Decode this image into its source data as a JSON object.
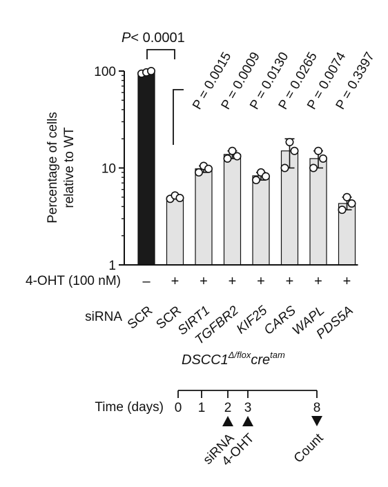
{
  "chart_data": {
    "type": "bar",
    "yscale": "log",
    "ylim": [
      1,
      100
    ],
    "ylabel_line1": "Percentage of cells",
    "ylabel_line2": "relative to WT",
    "yticks": [
      "1",
      "10",
      "100"
    ],
    "yticks_values": [
      1,
      10,
      100
    ],
    "categories": [
      "SCR",
      "SCR",
      "SIRT1",
      "TGFBR2",
      "KIF25",
      "CARS",
      "WAPL",
      "PDS5A"
    ],
    "values": [
      97,
      5.0,
      9.8,
      13.8,
      8.3,
      15.0,
      12.5,
      4.3
    ],
    "error_high": [
      100,
      5.2,
      10.5,
      15.0,
      9.0,
      20.0,
      15.0,
      5.0
    ],
    "error_low": [
      94,
      4.8,
      9.0,
      12.5,
      7.5,
      10.0,
      10.0,
      3.7
    ],
    "points": [
      [
        94,
        97,
        100
      ],
      [
        4.8,
        5.2,
        4.9
      ],
      [
        9.0,
        10.5,
        9.8
      ],
      [
        12.5,
        15.0,
        13.2
      ],
      [
        7.5,
        9.0,
        8.2
      ],
      [
        10.0,
        18.5,
        15.0
      ],
      [
        10.0,
        15.0,
        12.5
      ],
      [
        3.7,
        5.0,
        4.3
      ]
    ],
    "bar_colors": [
      "#1a1a1a",
      "#e3e3e3",
      "#e3e3e3",
      "#e3e3e3",
      "#e3e3e3",
      "#e3e3e3",
      "#e3e3e3",
      "#e3e3e3"
    ],
    "treatment_label": "4-OHT (100 nM)",
    "treatment_marks": [
      "–",
      "+",
      "+",
      "+",
      "+",
      "+",
      "+",
      "+"
    ],
    "sirna_label": "siRNA",
    "pvalue_main": "< 0.0001",
    "pvalue_letter": "P",
    "pvalues": [
      "P = 0.0015",
      "P = 0.0009",
      "P = 0.0130",
      "P = 0.0265",
      "P = 0.0074",
      "P = 0.3397"
    ],
    "genotype": {
      "base": "DSCC1",
      "sup1": "Δ/flox",
      "mid": "cre",
      "sup2": "tam"
    }
  },
  "timeline": {
    "label": "Time (days)",
    "ticks": [
      "0",
      "1",
      "2",
      "3",
      "8"
    ],
    "events": [
      {
        "day_index": 2,
        "direction": "up",
        "label": "siRNA"
      },
      {
        "day_index": 3,
        "direction": "up",
        "label": "4-OHT"
      },
      {
        "day_index": 4,
        "direction": "down",
        "label": "Count"
      }
    ]
  }
}
